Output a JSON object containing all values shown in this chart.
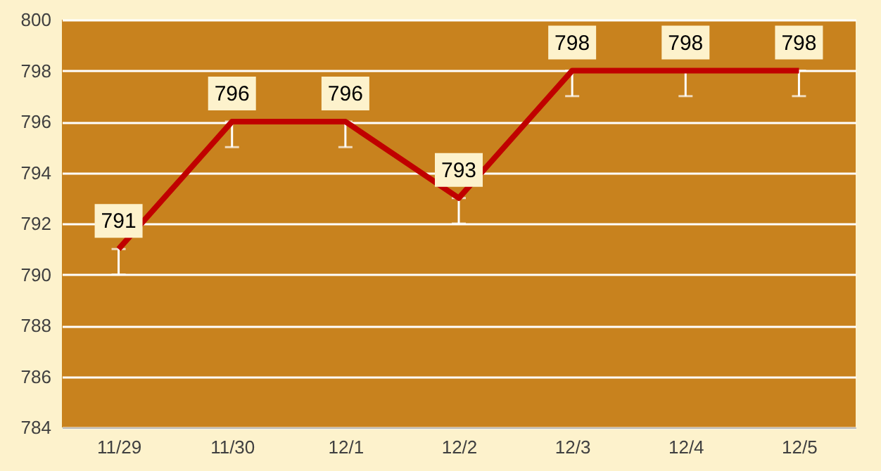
{
  "chart_data": {
    "type": "line",
    "categories": [
      "11/29",
      "11/30",
      "12/1",
      "12/2",
      "12/3",
      "12/4",
      "12/5"
    ],
    "series": [
      {
        "color": "#c00000",
        "values": [
          791,
          796,
          796,
          793,
          798,
          798,
          798
        ],
        "errors": [
          [
            790,
            791
          ],
          [
            795,
            796
          ],
          [
            795,
            796
          ],
          [
            792,
            793
          ],
          [
            797,
            798
          ],
          [
            797,
            798
          ],
          [
            797,
            798
          ]
        ]
      }
    ],
    "ylim": [
      784,
      800
    ],
    "yticks": [
      784,
      786,
      788,
      790,
      792,
      794,
      796,
      798,
      800
    ],
    "grid": "y",
    "data_labels": true,
    "marker": "none",
    "line_style": "solid"
  }
}
